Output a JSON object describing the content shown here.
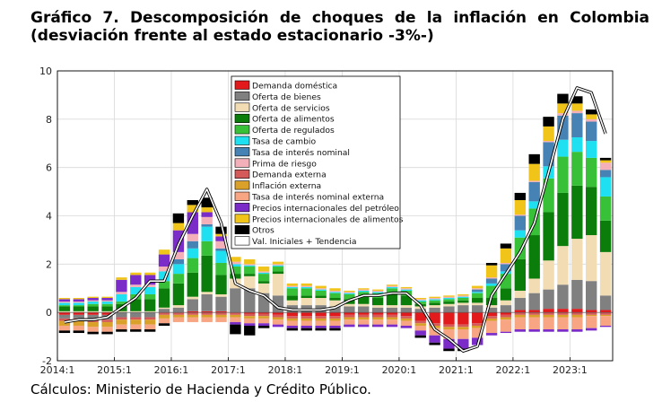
{
  "title": "Gráfico 7. Descomposición de choques de la inflación en Colombia (desviación frente al estado estacionario -3%-)",
  "source": "Cálculos: Ministerio de Hacienda y Crédito Público.",
  "chart_data": {
    "type": "bar",
    "stacked": true,
    "ylim": [
      -2,
      10
    ],
    "yticks": [
      -2,
      0,
      2,
      4,
      6,
      8,
      10
    ],
    "x_tick_labels": [
      "2014:1",
      "2015:1",
      "2016:1",
      "2017:1",
      "2018:1",
      "2019:1",
      "2020:1",
      "2021:1",
      "2022:1",
      "2023:1"
    ],
    "x_tick_index": [
      0,
      4,
      8,
      12,
      16,
      20,
      24,
      28,
      32,
      36
    ],
    "categories": [
      "2014:1",
      "2014:2",
      "2014:3",
      "2014:4",
      "2015:1",
      "2015:2",
      "2015:3",
      "2015:4",
      "2016:1",
      "2016:2",
      "2016:3",
      "2016:4",
      "2017:1",
      "2017:2",
      "2017:3",
      "2017:4",
      "2018:1",
      "2018:2",
      "2018:3",
      "2018:4",
      "2019:1",
      "2019:2",
      "2019:3",
      "2019:4",
      "2020:1",
      "2020:2",
      "2020:3",
      "2020:4",
      "2021:1",
      "2021:2",
      "2021:3",
      "2021:4",
      "2022:1",
      "2022:2",
      "2022:3",
      "2022:4",
      "2023:1",
      "2023:2",
      "2023:3"
    ],
    "grid": true,
    "legend_position": "top-center",
    "series": [
      {
        "name": "Demanda doméstica",
        "color": "#e31a1c",
        "values": [
          -0.1,
          -0.1,
          -0.1,
          -0.1,
          0,
          0,
          0,
          0,
          0,
          0.05,
          0.05,
          0.05,
          0,
          -0.05,
          -0.05,
          -0.1,
          -0.15,
          -0.15,
          -0.15,
          -0.15,
          -0.1,
          -0.1,
          -0.1,
          -0.1,
          -0.15,
          -0.35,
          -0.45,
          -0.5,
          -0.5,
          -0.45,
          -0.15,
          -0.1,
          0.1,
          0.1,
          0.15,
          0.15,
          0.15,
          0.1,
          0.1
        ]
      },
      {
        "name": "Oferta de bienes",
        "color": "#808080",
        "values": [
          -0.15,
          -0.15,
          -0.2,
          -0.2,
          -0.2,
          -0.2,
          -0.2,
          0.15,
          0.2,
          0.5,
          0.7,
          0.6,
          1.0,
          1.0,
          0.8,
          0.7,
          0.3,
          0.3,
          0.3,
          0.25,
          0.25,
          0.25,
          0.2,
          0.2,
          0.2,
          0.15,
          0.2,
          0.25,
          0.3,
          0.3,
          0.2,
          0.3,
          0.5,
          0.7,
          0.8,
          1.0,
          1.2,
          1.2,
          0.6
        ]
      },
      {
        "name": "Oferta de servicios",
        "color": "#f2dcb3",
        "values": [
          0.05,
          0.05,
          0.05,
          0.05,
          0.05,
          0.05,
          0.05,
          0.05,
          0.1,
          0.1,
          0.1,
          0.1,
          0.4,
          0.5,
          0.4,
          0.9,
          0.2,
          0.3,
          0.3,
          0.25,
          0.1,
          0.1,
          0.1,
          0.1,
          0.1,
          0.1,
          0.1,
          0.1,
          0.1,
          0.1,
          0.1,
          0.2,
          0.3,
          0.6,
          1.2,
          1.6,
          1.7,
          1.9,
          1.8
        ]
      },
      {
        "name": "Oferta de alimentos",
        "color": "#0b7d0b",
        "values": [
          0.2,
          0.2,
          0.2,
          0.2,
          0.3,
          0.5,
          0.5,
          0.8,
          0.9,
          1.0,
          1.5,
          0.8,
          0.2,
          0.1,
          0.1,
          0.1,
          0.2,
          0.1,
          0.1,
          0.1,
          0.2,
          0.3,
          0.3,
          0.5,
          0.4,
          0.1,
          0.1,
          0.1,
          0.1,
          0.2,
          0.3,
          0.5,
          1.3,
          1.8,
          2.0,
          2.2,
          2.2,
          2.0,
          1.3
        ]
      },
      {
        "name": "Oferta de regulados",
        "color": "#38c038",
        "values": [
          0.05,
          0.05,
          0.1,
          0.1,
          0.1,
          0.2,
          0.2,
          0.3,
          0.4,
          0.6,
          0.6,
          0.5,
          0.3,
          0.3,
          0.3,
          0.2,
          0.3,
          0.3,
          0.2,
          0.2,
          0.2,
          0.2,
          0.2,
          0.2,
          0.2,
          0.1,
          0.1,
          0.1,
          0.1,
          0.2,
          0.5,
          0.6,
          0.9,
          1.1,
          1.4,
          1.5,
          1.4,
          1.2,
          1.0
        ]
      },
      {
        "name": "Tasa de cambio",
        "color": "#1fe0f0",
        "values": [
          0.1,
          0.1,
          0.1,
          0.1,
          0.3,
          0.3,
          0.3,
          0.4,
          0.4,
          0.4,
          0.6,
          0.5,
          0.1,
          0.05,
          0.05,
          0.05,
          0.05,
          0.05,
          0.05,
          0.05,
          0.05,
          0.05,
          0.05,
          0.05,
          0.05,
          0.05,
          0.05,
          0.05,
          0.05,
          0.05,
          0.1,
          0.1,
          0.3,
          0.3,
          0.5,
          0.7,
          0.6,
          0.7,
          0.8
        ]
      },
      {
        "name": "Tasa de interés nominal",
        "color": "#4682b4",
        "values": [
          0,
          0,
          0,
          0,
          0,
          0,
          0,
          0,
          0.2,
          0.3,
          0.1,
          0.1,
          0,
          0,
          0,
          0,
          0,
          0,
          0,
          0,
          0,
          0,
          0,
          0,
          0,
          0,
          0,
          0,
          0,
          0.1,
          0.2,
          0.3,
          0.6,
          0.8,
          1.0,
          1.0,
          1.0,
          0.8,
          0.3
        ]
      },
      {
        "name": "Prima de riesgo",
        "color": "#f4b0b8",
        "values": [
          0.05,
          0.05,
          0.05,
          0.05,
          0.1,
          0.1,
          0.1,
          0.2,
          0.3,
          0.3,
          0.3,
          0.3,
          0.1,
          0.05,
          0.05,
          0.05,
          0.05,
          0.05,
          0.05,
          0.05,
          0.05,
          0.05,
          0.05,
          0.05,
          0.05,
          0.05,
          0.05,
          0.05,
          0.05,
          0.05,
          0.05,
          0.05,
          0.05,
          0.05,
          0.05,
          0.1,
          0.1,
          0.1,
          0.3
        ]
      },
      {
        "name": "Demanda externa",
        "color": "#d45a5a",
        "values": [
          -0.1,
          -0.1,
          -0.1,
          -0.1,
          -0.1,
          -0.1,
          -0.1,
          -0.1,
          -0.1,
          -0.1,
          -0.1,
          -0.1,
          -0.1,
          -0.1,
          -0.1,
          -0.1,
          -0.1,
          -0.1,
          -0.1,
          -0.1,
          -0.1,
          -0.1,
          -0.1,
          -0.1,
          -0.1,
          -0.1,
          -0.1,
          -0.1,
          -0.1,
          -0.1,
          -0.1,
          -0.1,
          -0.1,
          -0.1,
          -0.1,
          -0.1,
          -0.1,
          -0.1,
          -0.1
        ]
      },
      {
        "name": "Inflación externa",
        "color": "#d9a02a",
        "values": [
          -0.2,
          -0.2,
          -0.2,
          -0.2,
          -0.2,
          -0.2,
          -0.2,
          -0.15,
          -0.1,
          -0.1,
          -0.1,
          -0.1,
          -0.1,
          -0.1,
          -0.1,
          -0.1,
          -0.1,
          -0.1,
          -0.1,
          -0.1,
          -0.1,
          -0.1,
          -0.1,
          -0.1,
          -0.1,
          -0.1,
          -0.1,
          -0.1,
          -0.1,
          -0.1,
          -0.1,
          -0.1,
          -0.1,
          -0.1,
          -0.1,
          -0.1,
          -0.1,
          -0.05,
          -0.05
        ]
      },
      {
        "name": "Tasa de interés nominal externa",
        "color": "#f7a583",
        "values": [
          -0.2,
          -0.2,
          -0.2,
          -0.2,
          -0.2,
          -0.2,
          -0.2,
          -0.2,
          -0.2,
          -0.2,
          -0.2,
          -0.2,
          -0.2,
          -0.2,
          -0.2,
          -0.2,
          -0.2,
          -0.2,
          -0.2,
          -0.2,
          -0.2,
          -0.2,
          -0.2,
          -0.2,
          -0.2,
          -0.2,
          -0.3,
          -0.4,
          -0.4,
          -0.4,
          -0.5,
          -0.5,
          -0.5,
          -0.5,
          -0.5,
          -0.5,
          -0.5,
          -0.5,
          -0.4
        ]
      },
      {
        "name": "Precios internacionales del petróleo",
        "color": "#7b2cc8",
        "values": [
          0.1,
          0.1,
          0.1,
          0.1,
          0.5,
          0.4,
          0.4,
          0.5,
          0.9,
          0.9,
          0.2,
          0.2,
          -0.1,
          -0.1,
          -0.1,
          -0.1,
          -0.1,
          -0.1,
          -0.1,
          -0.1,
          -0.1,
          -0.1,
          -0.1,
          -0.1,
          -0.1,
          -0.2,
          -0.3,
          -0.4,
          -0.4,
          -0.3,
          -0.1,
          -0.05,
          -0.1,
          -0.1,
          -0.1,
          -0.1,
          -0.1,
          -0.1,
          -0.05
        ]
      },
      {
        "name": "Precios internacionales de alimentos",
        "color": "#f0c419",
        "values": [
          0.05,
          0.05,
          0.05,
          0.05,
          0.1,
          0.1,
          0.1,
          0.2,
          0.3,
          0.3,
          0.2,
          0.1,
          0.2,
          0.2,
          0.2,
          0.1,
          0.1,
          0.1,
          0.1,
          0.1,
          0.05,
          0.05,
          0.05,
          0.05,
          0.05,
          0.05,
          0.05,
          0.05,
          0.05,
          0.1,
          0.5,
          0.6,
          0.6,
          0.7,
          0.6,
          0.4,
          0.3,
          0.2,
          0.1
        ]
      },
      {
        "name": "Otros",
        "color": "#000000",
        "values": [
          -0.1,
          -0.1,
          -0.1,
          -0.1,
          -0.1,
          -0.1,
          -0.1,
          -0.1,
          0.4,
          0.2,
          0.4,
          0.3,
          -0.4,
          -0.4,
          -0.1,
          0,
          -0.1,
          -0.1,
          -0.1,
          -0.1,
          0,
          0,
          0,
          0,
          0,
          -0.1,
          -0.1,
          -0.1,
          -0.1,
          0,
          0.1,
          0.2,
          0.3,
          0.4,
          0.4,
          0.4,
          0.3,
          0.2,
          0.1
        ]
      }
    ],
    "line": {
      "name": "Val. Iniciales + Tendencia",
      "color": "#ffffff",
      "values": [
        -0.4,
        -0.3,
        -0.3,
        -0.2,
        0.2,
        0.6,
        1.3,
        1.3,
        2.8,
        4.0,
        5.1,
        3.7,
        1.2,
        0.9,
        0.7,
        0.2,
        0.1,
        0.1,
        0.1,
        0.2,
        0.5,
        0.7,
        0.7,
        0.8,
        0.8,
        0.3,
        -0.7,
        -1.1,
        -1.6,
        -1.4,
        0.7,
        1.6,
        2.5,
        3.7,
        5.8,
        8.0,
        9.3,
        9.1,
        7.4
      ]
    }
  }
}
